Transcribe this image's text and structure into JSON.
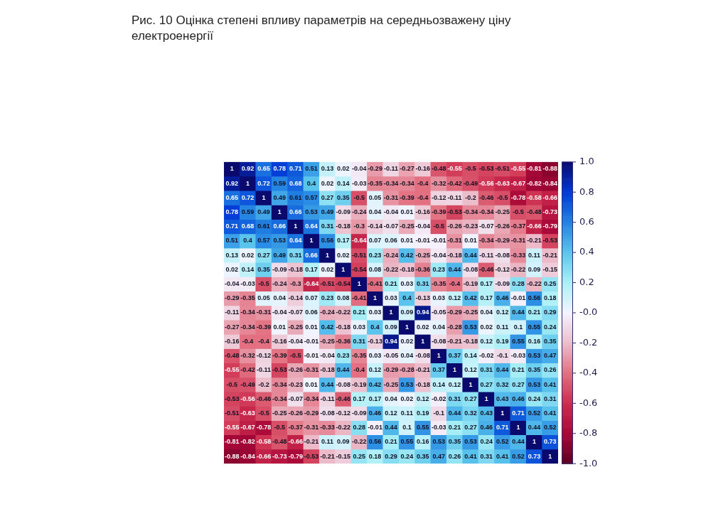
{
  "chart_data": {
    "type": "heatmap",
    "title": "Рис. 10 Оцінка степені впливу параметрів на середньозважену ціну електроенергії",
    "categories": [
      null,
      null,
      null,
      null,
      null,
      null,
      null,
      null,
      null,
      null,
      null,
      null,
      null,
      null,
      null,
      null,
      null,
      null,
      null,
      null,
      null
    ],
    "y_categories": [
      null,
      null,
      null,
      null,
      null,
      null,
      null,
      null,
      null,
      null,
      null,
      null,
      null,
      null,
      null,
      null,
      null,
      null,
      null,
      null,
      null
    ],
    "cells": [
      [
        1,
        0.92,
        0.65,
        0.78,
        0.71,
        0.51,
        0.13,
        0.02,
        -0.04,
        -0.29,
        -0.11,
        -0.27,
        -0.16,
        -0.48,
        -0.55,
        -0.5,
        -0.53,
        -0.51,
        -0.55,
        -0.81,
        -0.88
      ],
      [
        0.92,
        1,
        0.72,
        0.59,
        0.68,
        0.4,
        0.02,
        0.14,
        -0.03,
        -0.35,
        -0.34,
        -0.34,
        -0.4,
        -0.32,
        -0.42,
        -0.49,
        -0.56,
        -0.63,
        -0.67,
        -0.82,
        -0.84
      ],
      [
        0.65,
        0.72,
        1,
        0.49,
        0.61,
        0.57,
        0.27,
        0.35,
        -0.5,
        0.05,
        -0.31,
        -0.39,
        -0.4,
        -0.12,
        -0.11,
        -0.2,
        -0.46,
        -0.5,
        -0.78,
        -0.58,
        -0.66
      ],
      [
        0.78,
        0.59,
        0.49,
        1,
        0.66,
        0.53,
        0.49,
        -0.09,
        -0.24,
        0.04,
        -0.04,
        0.01,
        -0.16,
        -0.39,
        -0.53,
        -0.34,
        -0.34,
        -0.25,
        -0.5,
        -0.48,
        -0.73
      ],
      [
        0.71,
        0.68,
        0.61,
        0.66,
        1,
        0.64,
        0.31,
        -0.18,
        -0.3,
        -0.14,
        -0.07,
        -0.25,
        -0.04,
        -0.5,
        -0.26,
        -0.23,
        -0.07,
        -0.26,
        -0.37,
        -0.66,
        -0.79
      ],
      [
        0.51,
        0.4,
        0.57,
        0.53,
        0.64,
        1,
        0.56,
        0.17,
        -0.64,
        0.07,
        0.06,
        0.01,
        -0.01,
        -0.01,
        -0.31,
        0.01,
        -0.34,
        -0.29,
        -0.31,
        -0.21,
        -0.53
      ],
      [
        0.13,
        0.02,
        0.27,
        0.49,
        0.31,
        0.66,
        1,
        0.02,
        -0.51,
        0.23,
        -0.24,
        0.42,
        -0.25,
        -0.04,
        -0.18,
        0.44,
        -0.11,
        -0.08,
        -0.33,
        0.11,
        -0.21
      ],
      [
        0.02,
        0.14,
        0.35,
        -0.09,
        -0.18,
        0.17,
        0.02,
        1,
        -0.54,
        0.08,
        -0.22,
        -0.18,
        -0.36,
        0.23,
        0.44,
        -0.08,
        -0.46,
        -0.12,
        -0.22,
        0.09,
        -0.15
      ],
      [
        -0.04,
        -0.03,
        -0.5,
        -0.24,
        -0.3,
        -0.64,
        -0.51,
        -0.54,
        1,
        -0.41,
        0.21,
        0.03,
        0.31,
        -0.35,
        -0.4,
        -0.19,
        0.17,
        -0.09,
        0.28,
        -0.22,
        0.25
      ],
      [
        -0.29,
        -0.35,
        0.05,
        0.04,
        -0.14,
        0.07,
        0.23,
        0.08,
        -0.41,
        1,
        0.03,
        0.4,
        -0.13,
        0.03,
        0.12,
        0.42,
        0.17,
        0.46,
        -0.01,
        0.56,
        0.18
      ],
      [
        -0.11,
        -0.34,
        -0.31,
        -0.04,
        -0.07,
        0.06,
        -0.24,
        -0.22,
        0.21,
        0.03,
        1,
        0.09,
        0.94,
        -0.05,
        -0.29,
        -0.25,
        0.04,
        0.12,
        0.44,
        0.21,
        0.29
      ],
      [
        -0.27,
        -0.34,
        -0.39,
        0.01,
        -0.25,
        0.01,
        0.42,
        -0.18,
        0.03,
        0.4,
        0.09,
        1,
        0.02,
        0.04,
        -0.28,
        0.53,
        0.02,
        0.11,
        0.1,
        0.55,
        0.24
      ],
      [
        -0.16,
        -0.4,
        -0.4,
        -0.16,
        -0.04,
        -0.01,
        -0.25,
        -0.36,
        0.31,
        -0.13,
        0.94,
        0.02,
        1,
        -0.08,
        -0.21,
        -0.18,
        0.12,
        0.19,
        0.55,
        0.16,
        0.35
      ],
      [
        -0.48,
        -0.32,
        -0.12,
        -0.39,
        -0.5,
        -0.01,
        -0.04,
        0.23,
        -0.35,
        0.03,
        -0.05,
        0.04,
        -0.08,
        1,
        0.37,
        0.14,
        -0.02,
        -0.1,
        -0.03,
        0.53,
        0.47
      ],
      [
        -0.55,
        -0.42,
        -0.11,
        -0.53,
        -0.26,
        -0.31,
        -0.18,
        0.44,
        -0.4,
        0.12,
        -0.29,
        -0.28,
        -0.21,
        0.37,
        1,
        0.12,
        0.31,
        0.44,
        0.21,
        0.35,
        0.26
      ],
      [
        -0.5,
        -0.49,
        -0.2,
        -0.34,
        -0.23,
        0.01,
        0.44,
        -0.08,
        -0.19,
        0.42,
        -0.25,
        0.53,
        -0.18,
        0.14,
        0.12,
        1,
        0.27,
        0.32,
        0.27,
        0.53,
        0.41
      ],
      [
        -0.53,
        -0.56,
        -0.46,
        -0.34,
        -0.07,
        -0.34,
        -0.11,
        -0.46,
        0.17,
        0.17,
        0.04,
        0.02,
        0.12,
        -0.02,
        0.31,
        0.27,
        1,
        0.43,
        0.46,
        0.24,
        0.31
      ],
      [
        -0.51,
        -0.63,
        -0.5,
        -0.25,
        -0.26,
        -0.29,
        -0.08,
        -0.12,
        -0.09,
        0.46,
        0.12,
        0.11,
        0.19,
        -0.1,
        0.44,
        0.32,
        0.43,
        1,
        0.71,
        0.52,
        0.41
      ],
      [
        -0.55,
        -0.67,
        -0.78,
        -0.5,
        -0.37,
        -0.31,
        -0.33,
        -0.22,
        0.28,
        -0.01,
        0.44,
        0.1,
        0.55,
        -0.03,
        0.21,
        0.27,
        0.46,
        0.71,
        1,
        0.44,
        0.52
      ],
      [
        -0.81,
        -0.82,
        -0.58,
        -0.48,
        -0.66,
        -0.21,
        0.11,
        0.09,
        -0.22,
        0.56,
        0.21,
        0.55,
        0.16,
        0.53,
        0.35,
        0.53,
        0.24,
        0.52,
        0.44,
        1,
        0.73
      ],
      [
        -0.88,
        -0.84,
        -0.66,
        -0.73,
        -0.79,
        -0.53,
        -0.21,
        -0.15,
        0.25,
        0.18,
        0.29,
        0.24,
        0.35,
        0.47,
        0.26,
        0.41,
        0.31,
        0.41,
        0.52,
        0.73,
        1
      ]
    ],
    "data_labels": true,
    "clim": [
      -1,
      1
    ],
    "cticks": [
      {
        "value": -1,
        "label": "-1.0"
      },
      -0.8,
      -0.6,
      -0.4,
      -0.2,
      {
        "value": 0,
        "label": "-0.0"
      },
      0.2,
      0.4,
      0.6,
      0.8,
      {
        "value": 1,
        "label": "1.0"
      }
    ]
  }
}
